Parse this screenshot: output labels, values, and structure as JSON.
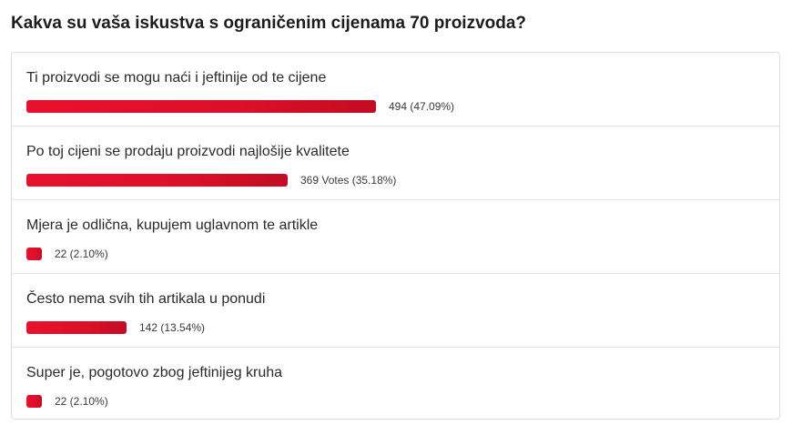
{
  "poll": {
    "question": "Kakva su vaša iskustva s ograničenim cijenama 70 proizvoda?",
    "accent_color": "#dc1029",
    "options": [
      {
        "label": "Ti proizvodi se mogu naći i jeftinije od te cijene",
        "result": "494 (47.09%)",
        "percent": 47.09
      },
      {
        "label": "Po toj cijeni se prodaju proizvodi najlošije kvalitete",
        "result": "369 Votes (35.18%)",
        "percent": 35.18
      },
      {
        "label": "Mjera je odlična, kupujem uglavnom te artikle",
        "result": "22 (2.10%)",
        "percent": 2.1
      },
      {
        "label": "Često nema svih tih artikala u ponudi",
        "result": "142 (13.54%)",
        "percent": 13.54
      },
      {
        "label": "Super je, pogotovo zbog jeftinijeg kruha",
        "result": "22 (2.10%)",
        "percent": 2.1
      }
    ]
  }
}
